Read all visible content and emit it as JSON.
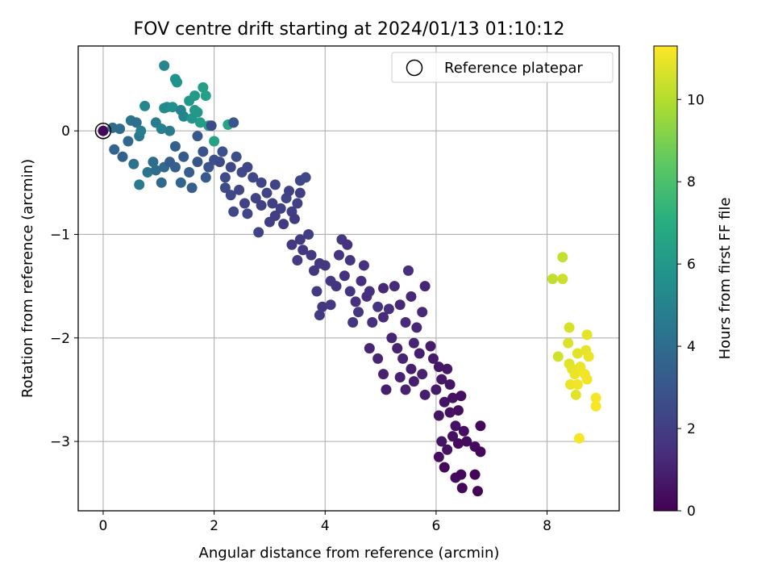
{
  "chart_data": {
    "type": "scatter",
    "title": "FOV centre drift starting at 2024/01/13 01:10:12",
    "xlabel": "Angular distance from reference (arcmin)",
    "ylabel": "Rotation from reference (arcmin)",
    "xlim": [
      -0.45,
      9.3
    ],
    "ylim": [
      -3.67,
      0.82
    ],
    "xticks": [
      0,
      2,
      4,
      6,
      8
    ],
    "xtick_labels": [
      "0",
      "2",
      "4",
      "6",
      "8"
    ],
    "yticks": [
      0,
      -1,
      -2,
      -3
    ],
    "ytick_labels": [
      "0",
      "−1",
      "−2",
      "−3"
    ],
    "grid": true,
    "legend": {
      "placement": "top-right",
      "entries": [
        "Reference platepar"
      ]
    },
    "reference_point": {
      "x": 0,
      "y": 0,
      "label": "Reference platepar"
    },
    "colorbar": {
      "label": "Hours from first FF file",
      "colormap": "viridis",
      "range": [
        0,
        11.3
      ],
      "ticks": [
        0,
        2,
        4,
        6,
        8,
        10
      ],
      "tick_labels": [
        "0",
        "2",
        "4",
        "6",
        "8",
        "10"
      ]
    },
    "points": [
      {
        "x": 0.0,
        "y": 0.0,
        "c": 0.2
      },
      {
        "x": 0.2,
        "y": -0.18,
        "c": 3.6
      },
      {
        "x": 0.35,
        "y": -0.25,
        "c": 3.5
      },
      {
        "x": 0.3,
        "y": 0.02,
        "c": 3.9
      },
      {
        "x": 0.17,
        "y": 0.03,
        "c": 4.0
      },
      {
        "x": 0.5,
        "y": 0.1,
        "c": 4.3
      },
      {
        "x": 0.6,
        "y": 0.08,
        "c": 4.1
      },
      {
        "x": 0.65,
        "y": -0.05,
        "c": 4.5
      },
      {
        "x": 0.75,
        "y": 0.24,
        "c": 5.2
      },
      {
        "x": 0.68,
        "y": 0.0,
        "c": 4.8
      },
      {
        "x": 0.45,
        "y": -0.1,
        "c": 3.7
      },
      {
        "x": 0.55,
        "y": -0.32,
        "c": 4.2
      },
      {
        "x": 0.65,
        "y": -0.52,
        "c": 4.6
      },
      {
        "x": 0.8,
        "y": -0.4,
        "c": 4.4
      },
      {
        "x": 0.9,
        "y": -0.3,
        "c": 4.0
      },
      {
        "x": 1.1,
        "y": -0.35,
        "c": 3.8
      },
      {
        "x": 0.95,
        "y": 0.08,
        "c": 4.7
      },
      {
        "x": 1.05,
        "y": 0.02,
        "c": 4.9
      },
      {
        "x": 1.1,
        "y": 0.22,
        "c": 5.5
      },
      {
        "x": 1.15,
        "y": 0.23,
        "c": 5.3
      },
      {
        "x": 1.25,
        "y": 0.23,
        "c": 5.6
      },
      {
        "x": 1.1,
        "y": 0.63,
        "c": 5.2
      },
      {
        "x": 1.3,
        "y": 0.5,
        "c": 5.8
      },
      {
        "x": 1.33,
        "y": 0.47,
        "c": 5.7
      },
      {
        "x": 1.2,
        "y": 0.0,
        "c": 4.6
      },
      {
        "x": 1.4,
        "y": 0.2,
        "c": 5.0
      },
      {
        "x": 1.45,
        "y": 0.14,
        "c": 5.1
      },
      {
        "x": 1.55,
        "y": 0.29,
        "c": 5.9
      },
      {
        "x": 1.65,
        "y": 0.34,
        "c": 6.1
      },
      {
        "x": 1.7,
        "y": 0.18,
        "c": 6.0
      },
      {
        "x": 1.75,
        "y": 0.08,
        "c": 6.2
      },
      {
        "x": 1.8,
        "y": 0.42,
        "c": 6.3
      },
      {
        "x": 1.85,
        "y": 0.34,
        "c": 6.4
      },
      {
        "x": 1.9,
        "y": 0.05,
        "c": 6.2
      },
      {
        "x": 2.0,
        "y": -0.1,
        "c": 6.5
      },
      {
        "x": 1.65,
        "y": 0.2,
        "c": 6.0
      },
      {
        "x": 1.6,
        "y": 0.12,
        "c": 5.9
      },
      {
        "x": 2.25,
        "y": 0.06,
        "c": 6.6
      },
      {
        "x": 2.35,
        "y": 0.08,
        "c": 3.0
      },
      {
        "x": 1.95,
        "y": 0.05,
        "c": 2.6
      },
      {
        "x": 1.7,
        "y": -0.05,
        "c": 3.1
      },
      {
        "x": 1.3,
        "y": -0.15,
        "c": 3.4
      },
      {
        "x": 1.45,
        "y": -0.25,
        "c": 3.2
      },
      {
        "x": 1.55,
        "y": -0.4,
        "c": 3.3
      },
      {
        "x": 1.7,
        "y": -0.3,
        "c": 3.0
      },
      {
        "x": 1.8,
        "y": -0.2,
        "c": 2.9
      },
      {
        "x": 1.85,
        "y": -0.45,
        "c": 3.2
      },
      {
        "x": 1.6,
        "y": -0.55,
        "c": 3.4
      },
      {
        "x": 1.4,
        "y": -0.5,
        "c": 3.6
      },
      {
        "x": 1.3,
        "y": -0.35,
        "c": 3.5
      },
      {
        "x": 1.2,
        "y": -0.3,
        "c": 3.3
      },
      {
        "x": 1.05,
        "y": -0.5,
        "c": 3.8
      },
      {
        "x": 0.95,
        "y": -0.38,
        "c": 4.0
      },
      {
        "x": 1.9,
        "y": -0.35,
        "c": 2.9
      },
      {
        "x": 2.0,
        "y": -0.28,
        "c": 2.7
      },
      {
        "x": 2.1,
        "y": -0.3,
        "c": 2.5
      },
      {
        "x": 2.15,
        "y": -0.2,
        "c": 2.8
      },
      {
        "x": 2.2,
        "y": -0.45,
        "c": 2.6
      },
      {
        "x": 2.3,
        "y": -0.35,
        "c": 2.4
      },
      {
        "x": 2.4,
        "y": -0.25,
        "c": 2.7
      },
      {
        "x": 2.5,
        "y": -0.4,
        "c": 2.5
      },
      {
        "x": 2.6,
        "y": -0.35,
        "c": 2.3
      },
      {
        "x": 2.7,
        "y": -0.45,
        "c": 2.4
      },
      {
        "x": 2.2,
        "y": -0.55,
        "c": 2.6
      },
      {
        "x": 2.3,
        "y": -0.62,
        "c": 2.5
      },
      {
        "x": 2.45,
        "y": -0.57,
        "c": 2.3
      },
      {
        "x": 2.55,
        "y": -0.7,
        "c": 2.2
      },
      {
        "x": 2.35,
        "y": -0.78,
        "c": 2.4
      },
      {
        "x": 2.6,
        "y": -0.8,
        "c": 2.3
      },
      {
        "x": 2.75,
        "y": -0.65,
        "c": 2.2
      },
      {
        "x": 2.85,
        "y": -0.72,
        "c": 2.1
      },
      {
        "x": 2.95,
        "y": -0.6,
        "c": 2.2
      },
      {
        "x": 3.05,
        "y": -0.7,
        "c": 2.1
      },
      {
        "x": 3.1,
        "y": -0.82,
        "c": 2.0
      },
      {
        "x": 3.2,
        "y": -0.75,
        "c": 2.1
      },
      {
        "x": 3.3,
        "y": -0.65,
        "c": 2.2
      },
      {
        "x": 3.4,
        "y": -0.78,
        "c": 2.0
      },
      {
        "x": 3.5,
        "y": -0.7,
        "c": 2.1
      },
      {
        "x": 3.55,
        "y": -0.48,
        "c": 2.4
      },
      {
        "x": 3.65,
        "y": -0.45,
        "c": 2.5
      },
      {
        "x": 3.25,
        "y": -0.9,
        "c": 1.9
      },
      {
        "x": 2.8,
        "y": -0.98,
        "c": 2.2
      },
      {
        "x": 3.0,
        "y": -0.88,
        "c": 2.0
      },
      {
        "x": 2.85,
        "y": -0.5,
        "c": 2.3
      },
      {
        "x": 3.1,
        "y": -0.52,
        "c": 2.2
      },
      {
        "x": 3.35,
        "y": -0.58,
        "c": 2.1
      },
      {
        "x": 3.45,
        "y": -0.85,
        "c": 1.9
      },
      {
        "x": 3.55,
        "y": -0.6,
        "c": 2.0
      },
      {
        "x": 3.4,
        "y": -1.1,
        "c": 1.8
      },
      {
        "x": 3.55,
        "y": -1.05,
        "c": 1.9
      },
      {
        "x": 3.6,
        "y": -1.15,
        "c": 1.8
      },
      {
        "x": 3.7,
        "y": -1.0,
        "c": 2.0
      },
      {
        "x": 3.5,
        "y": -1.25,
        "c": 1.9
      },
      {
        "x": 3.75,
        "y": -1.2,
        "c": 1.8
      },
      {
        "x": 3.8,
        "y": -1.35,
        "c": 1.7
      },
      {
        "x": 3.9,
        "y": -1.28,
        "c": 1.8
      },
      {
        "x": 4.0,
        "y": -1.3,
        "c": 1.7
      },
      {
        "x": 3.85,
        "y": -1.55,
        "c": 1.9
      },
      {
        "x": 3.95,
        "y": -1.7,
        "c": 1.7
      },
      {
        "x": 3.9,
        "y": -1.78,
        "c": 1.9
      },
      {
        "x": 4.1,
        "y": -1.45,
        "c": 1.7
      },
      {
        "x": 4.1,
        "y": -1.68,
        "c": 1.8
      },
      {
        "x": 4.2,
        "y": -1.5,
        "c": 1.6
      },
      {
        "x": 4.25,
        "y": -1.2,
        "c": 1.6
      },
      {
        "x": 4.3,
        "y": -1.05,
        "c": 1.7
      },
      {
        "x": 4.4,
        "y": -1.1,
        "c": 1.5
      },
      {
        "x": 4.45,
        "y": -1.25,
        "c": 1.6
      },
      {
        "x": 4.35,
        "y": -1.4,
        "c": 1.5
      },
      {
        "x": 4.45,
        "y": -1.55,
        "c": 1.6
      },
      {
        "x": 4.55,
        "y": -1.65,
        "c": 1.5
      },
      {
        "x": 4.5,
        "y": -1.85,
        "c": 1.6
      },
      {
        "x": 4.6,
        "y": -1.75,
        "c": 1.7
      },
      {
        "x": 4.65,
        "y": -1.45,
        "c": 1.4
      },
      {
        "x": 4.7,
        "y": -1.3,
        "c": 1.5
      },
      {
        "x": 4.75,
        "y": -1.6,
        "c": 1.4
      },
      {
        "x": 4.8,
        "y": -1.55,
        "c": 1.5
      },
      {
        "x": 4.85,
        "y": -1.85,
        "c": 1.4
      },
      {
        "x": 4.95,
        "y": -1.7,
        "c": 1.6
      },
      {
        "x": 5.05,
        "y": -1.8,
        "c": 1.3
      },
      {
        "x": 5.15,
        "y": -1.72,
        "c": 1.4
      },
      {
        "x": 5.25,
        "y": -1.5,
        "c": 1.3
      },
      {
        "x": 5.35,
        "y": -1.68,
        "c": 1.2
      },
      {
        "x": 5.45,
        "y": -1.85,
        "c": 1.3
      },
      {
        "x": 5.55,
        "y": -1.6,
        "c": 1.2
      },
      {
        "x": 5.65,
        "y": -1.9,
        "c": 1.2
      },
      {
        "x": 5.8,
        "y": -1.5,
        "c": 1.1
      },
      {
        "x": 5.75,
        "y": -1.75,
        "c": 1.2
      },
      {
        "x": 5.5,
        "y": -1.35,
        "c": 1.4
      },
      {
        "x": 5.2,
        "y": -2.0,
        "c": 1.1
      },
      {
        "x": 5.3,
        "y": -2.1,
        "c": 1.0
      },
      {
        "x": 5.4,
        "y": -2.2,
        "c": 1.1
      },
      {
        "x": 5.35,
        "y": -2.38,
        "c": 1.0
      },
      {
        "x": 5.45,
        "y": -2.5,
        "c": 1.0
      },
      {
        "x": 5.55,
        "y": -2.3,
        "c": 0.9
      },
      {
        "x": 5.6,
        "y": -2.05,
        "c": 1.1
      },
      {
        "x": 5.7,
        "y": -2.15,
        "c": 0.9
      },
      {
        "x": 5.75,
        "y": -2.35,
        "c": 1.0
      },
      {
        "x": 5.8,
        "y": -2.55,
        "c": 0.9
      },
      {
        "x": 5.9,
        "y": -2.08,
        "c": 0.8
      },
      {
        "x": 5.95,
        "y": -2.2,
        "c": 0.8
      },
      {
        "x": 6.05,
        "y": -2.28,
        "c": 0.7
      },
      {
        "x": 6.1,
        "y": -2.4,
        "c": 0.7
      },
      {
        "x": 6.0,
        "y": -2.5,
        "c": 0.8
      },
      {
        "x": 6.15,
        "y": -2.62,
        "c": 0.6
      },
      {
        "x": 6.05,
        "y": -2.75,
        "c": 0.6
      },
      {
        "x": 6.2,
        "y": -2.3,
        "c": 0.7
      },
      {
        "x": 6.25,
        "y": -2.45,
        "c": 0.6
      },
      {
        "x": 6.3,
        "y": -2.58,
        "c": 0.5
      },
      {
        "x": 6.25,
        "y": -2.72,
        "c": 0.5
      },
      {
        "x": 6.35,
        "y": -2.85,
        "c": 0.5
      },
      {
        "x": 6.4,
        "y": -2.7,
        "c": 0.4
      },
      {
        "x": 6.45,
        "y": -2.56,
        "c": 0.4
      },
      {
        "x": 6.5,
        "y": -2.9,
        "c": 0.4
      },
      {
        "x": 6.3,
        "y": -2.95,
        "c": 0.5
      },
      {
        "x": 6.1,
        "y": -3.0,
        "c": 0.6
      },
      {
        "x": 6.2,
        "y": -3.08,
        "c": 0.5
      },
      {
        "x": 6.05,
        "y": -3.15,
        "c": 0.4
      },
      {
        "x": 6.4,
        "y": -3.02,
        "c": 0.3
      },
      {
        "x": 6.55,
        "y": -3.0,
        "c": 0.3
      },
      {
        "x": 6.7,
        "y": -3.05,
        "c": 0.3
      },
      {
        "x": 6.8,
        "y": -2.85,
        "c": 0.2
      },
      {
        "x": 6.8,
        "y": -3.1,
        "c": 0.2
      },
      {
        "x": 6.35,
        "y": -3.35,
        "c": 0.3
      },
      {
        "x": 6.45,
        "y": -3.32,
        "c": 0.2
      },
      {
        "x": 6.47,
        "y": -3.45,
        "c": 0.2
      },
      {
        "x": 6.75,
        "y": -3.48,
        "c": 0.1
      },
      {
        "x": 6.7,
        "y": -3.32,
        "c": 0.1
      },
      {
        "x": 6.15,
        "y": -3.25,
        "c": 0.2
      },
      {
        "x": 5.05,
        "y": -1.52,
        "c": 1.2
      },
      {
        "x": 5.6,
        "y": -2.42,
        "c": 0.9
      },
      {
        "x": 4.8,
        "y": -2.1,
        "c": 1.1
      },
      {
        "x": 5.05,
        "y": -2.35,
        "c": 1.0
      },
      {
        "x": 4.95,
        "y": -2.2,
        "c": 1.1
      },
      {
        "x": 5.1,
        "y": -2.5,
        "c": 0.9
      },
      {
        "x": 8.1,
        "y": -1.43,
        "c": 10.2
      },
      {
        "x": 8.28,
        "y": -1.22,
        "c": 10.3
      },
      {
        "x": 8.28,
        "y": -1.43,
        "c": 10.4
      },
      {
        "x": 8.4,
        "y": -1.9,
        "c": 10.6
      },
      {
        "x": 8.38,
        "y": -2.05,
        "c": 10.7
      },
      {
        "x": 8.2,
        "y": -2.18,
        "c": 10.5
      },
      {
        "x": 8.55,
        "y": -2.15,
        "c": 10.8
      },
      {
        "x": 8.72,
        "y": -1.97,
        "c": 10.9
      },
      {
        "x": 8.7,
        "y": -2.12,
        "c": 10.9
      },
      {
        "x": 8.75,
        "y": -2.18,
        "c": 11.0
      },
      {
        "x": 8.4,
        "y": -2.25,
        "c": 10.8
      },
      {
        "x": 8.45,
        "y": -2.3,
        "c": 10.9
      },
      {
        "x": 8.5,
        "y": -2.35,
        "c": 11.0
      },
      {
        "x": 8.6,
        "y": -2.28,
        "c": 11.0
      },
      {
        "x": 8.68,
        "y": -2.35,
        "c": 11.1
      },
      {
        "x": 8.72,
        "y": -2.4,
        "c": 11.1
      },
      {
        "x": 8.42,
        "y": -2.45,
        "c": 11.0
      },
      {
        "x": 8.55,
        "y": -2.45,
        "c": 11.1
      },
      {
        "x": 8.52,
        "y": -2.55,
        "c": 10.8
      },
      {
        "x": 8.88,
        "y": -2.58,
        "c": 11.2
      },
      {
        "x": 8.88,
        "y": -2.66,
        "c": 11.2
      },
      {
        "x": 8.58,
        "y": -2.97,
        "c": 11.2
      }
    ]
  }
}
